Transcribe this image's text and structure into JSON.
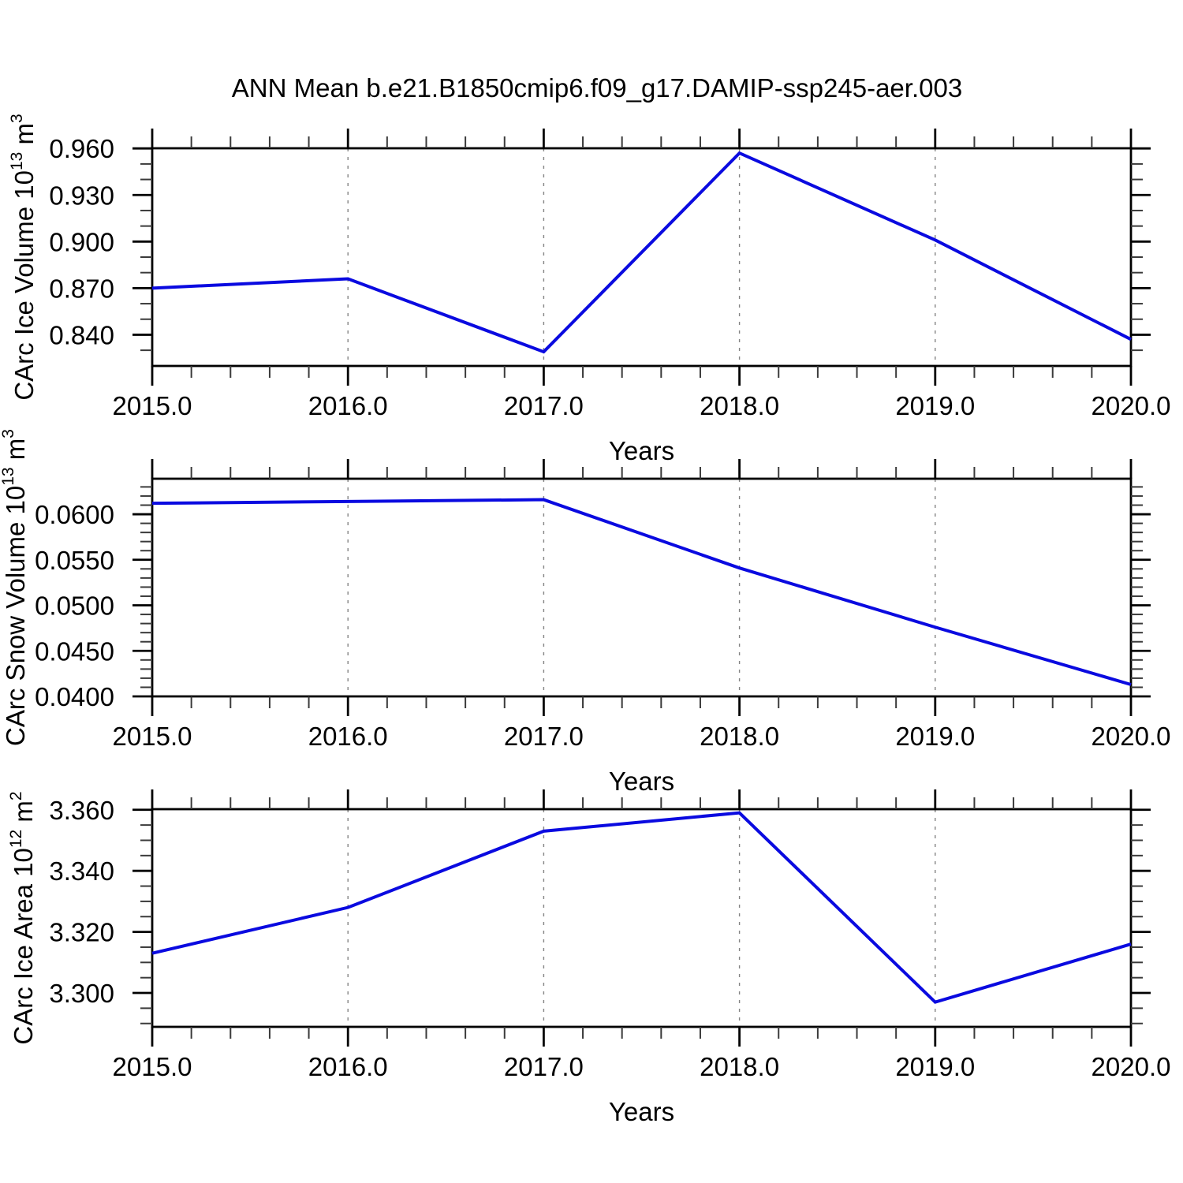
{
  "title": "ANN Mean b.e21.B1850cmip6.f09_g17.DAMIP-ssp245-aer.003",
  "line_color": "#0a0ae0",
  "chart_data": [
    {
      "id": "carc-ice-volume",
      "type": "line",
      "x": [
        2015,
        2016,
        2017,
        2018,
        2019,
        2020
      ],
      "values": [
        0.87,
        0.876,
        0.829,
        0.957,
        0.901,
        0.837
      ],
      "xlabel": "Years",
      "ylabel": "CArc Ice Volume 10^13 m^3",
      "xlim": [
        2015,
        2020
      ],
      "ylim": [
        0.8199,
        0.9601
      ],
      "xticks": [
        2015,
        2016,
        2017,
        2018,
        2019,
        2020
      ],
      "xtick_labels": [
        "2015.0",
        "2016.0",
        "2017.0",
        "2018.0",
        "2019.0",
        "2020.0"
      ],
      "xminor_step": 0.2,
      "yticks": [
        0.84,
        0.87,
        0.9,
        0.93,
        0.96
      ],
      "ytick_format_decimals": 3,
      "yminor_step": 0.01,
      "grid_x": [
        2016,
        2017,
        2018,
        2019
      ],
      "grid_on": "vertical-dashed",
      "legend": "none"
    },
    {
      "id": "carc-snow-volume",
      "type": "line",
      "x": [
        2015,
        2016,
        2017,
        2018,
        2019,
        2020
      ],
      "values": [
        0.0612,
        0.0614,
        0.0616,
        0.0541,
        0.0476,
        0.0413
      ],
      "xlabel": "Years",
      "ylabel": "CArc Snow Volume 10^13 m^3",
      "xlim": [
        2015,
        2020
      ],
      "ylim": [
        0.04,
        0.0639
      ],
      "xticks": [
        2015,
        2016,
        2017,
        2018,
        2019,
        2020
      ],
      "xtick_labels": [
        "2015.0",
        "2016.0",
        "2017.0",
        "2018.0",
        "2019.0",
        "2020.0"
      ],
      "xminor_step": 0.2,
      "yticks": [
        0.04,
        0.045,
        0.05,
        0.055,
        0.06
      ],
      "ytick_format_decimals": 4,
      "yminor_step": 0.001,
      "grid_x": [
        2016,
        2017,
        2018,
        2019
      ],
      "grid_on": "vertical-dashed",
      "legend": "none"
    },
    {
      "id": "carc-ice-area",
      "type": "line",
      "x": [
        2015,
        2016,
        2017,
        2018,
        2019,
        2020
      ],
      "values": [
        3.313,
        3.328,
        3.353,
        3.359,
        3.297,
        3.316
      ],
      "xlabel": "Years",
      "ylabel": "CArc Ice Area 10^12 m^2",
      "xlim": [
        2015,
        2020
      ],
      "ylim": [
        3.2889,
        3.3602
      ],
      "xticks": [
        2015,
        2016,
        2017,
        2018,
        2019,
        2020
      ],
      "xtick_labels": [
        "2015.0",
        "2016.0",
        "2017.0",
        "2018.0",
        "2019.0",
        "2020.0"
      ],
      "xminor_step": 0.2,
      "yticks": [
        3.3,
        3.32,
        3.34,
        3.36
      ],
      "ytick_format_decimals": 3,
      "yminor_step": 0.005,
      "grid_x": [
        2016,
        2017,
        2018,
        2019
      ],
      "grid_on": "vertical-dashed",
      "legend": "none"
    }
  ]
}
